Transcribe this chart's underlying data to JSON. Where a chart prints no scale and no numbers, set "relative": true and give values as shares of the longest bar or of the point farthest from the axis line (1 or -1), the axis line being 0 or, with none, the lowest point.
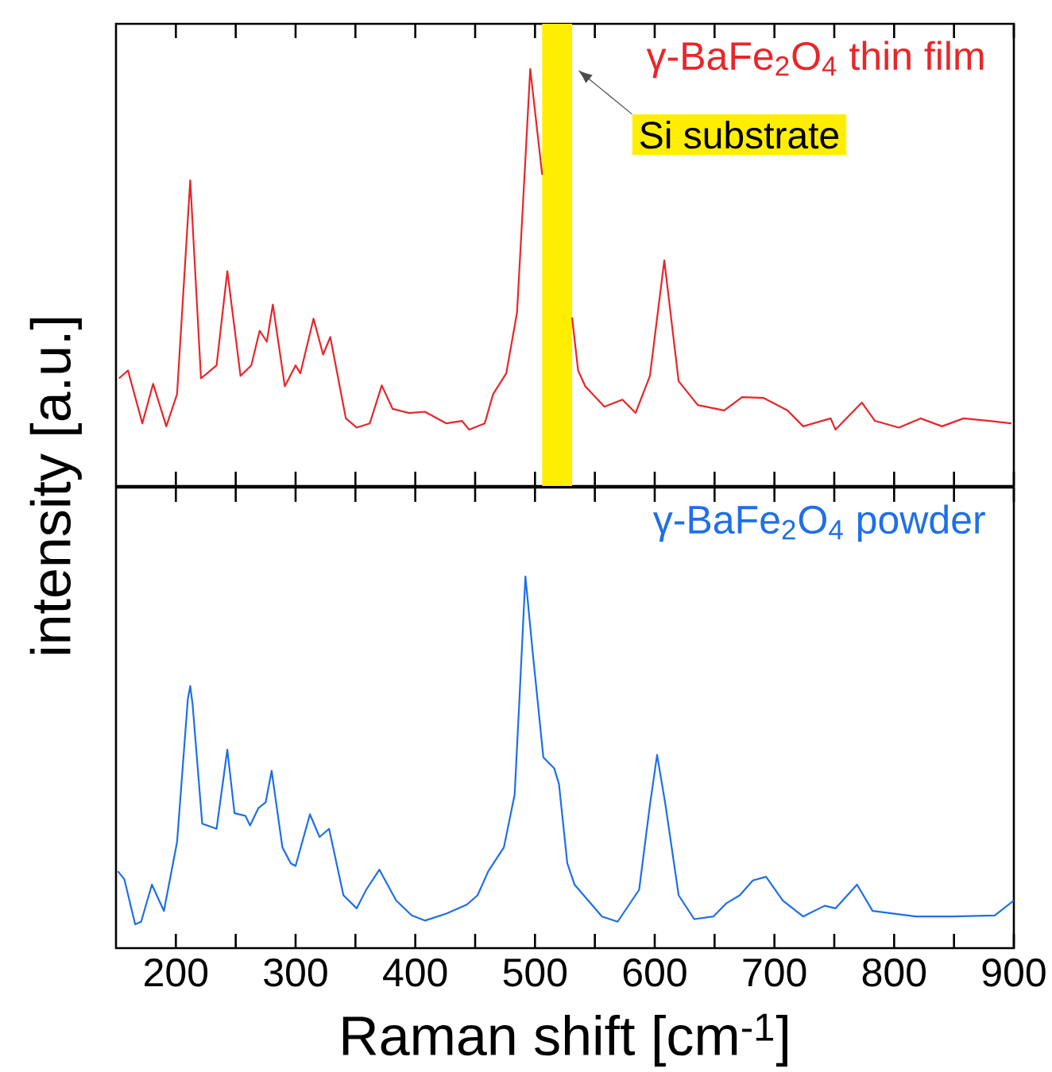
{
  "chart_data": [
    {
      "type": "line",
      "relative": true,
      "ylabel": "intensity [a.u.]",
      "legend": "top right",
      "tick_labels": false,
      "xlim": [
        150,
        900
      ],
      "xticks": [
        200,
        {
          "value": 250,
          "label": null
        },
        300,
        {
          "value": 350,
          "label": null
        },
        400,
        {
          "value": 450,
          "label": null
        },
        500,
        {
          "value": 550,
          "label": null
        },
        600,
        {
          "value": 650,
          "label": null
        },
        700,
        {
          "value": 750,
          "label": null
        },
        800,
        {
          "value": 850,
          "label": null
        },
        900
      ],
      "bands": [
        {
          "axis": "x",
          "from": 506,
          "to": 531,
          "label": "Si substrate",
          "color": "#ffee00"
        }
      ],
      "series": [
        {
          "name": "γ-BaFe$_{2}$O$_{4}$ thin film",
          "color": "#e8262a",
          "x": [
            152.5,
            160,
            172,
            181,
            192,
            201,
            212,
            221,
            234,
            243,
            254,
            263,
            270,
            276,
            281,
            291,
            300,
            304,
            315,
            323,
            329,
            342,
            351,
            362,
            372,
            381,
            395,
            408,
            426,
            439,
            445,
            458,
            465,
            476,
            485,
            492,
            496,
            502,
            506,
            518,
            531,
            536,
            542,
            558,
            573,
            584,
            596,
            608,
            620,
            636,
            658,
            673,
            691,
            711,
            724,
            747,
            751,
            773,
            784,
            804,
            822,
            840,
            858,
            880,
            898
          ],
          "values": [
            0.258,
            0.277,
            0.15,
            0.245,
            0.143,
            0.22,
            0.733,
            0.258,
            0.289,
            0.515,
            0.264,
            0.289,
            0.372,
            0.346,
            0.435,
            0.239,
            0.289,
            0.27,
            0.401,
            0.315,
            0.357,
            0.162,
            0.14,
            0.15,
            0.241,
            0.185,
            0.175,
            0.178,
            0.15,
            0.156,
            0.135,
            0.15,
            0.22,
            0.27,
            0.416,
            0.784,
            1.0,
            0.848,
            0.746,
            null,
            0.404,
            0.277,
            0.239,
            0.19,
            0.207,
            0.175,
            0.264,
            0.541,
            0.251,
            0.194,
            0.181,
            0.213,
            0.211,
            0.181,
            0.143,
            0.162,
            0.135,
            0.2,
            0.156,
            0.14,
            0.162,
            0.143,
            0.162,
            0.156,
            0.15
          ]
        }
      ]
    },
    {
      "type": "line",
      "relative": true,
      "xlabel": "Raman shift [cm$^{-1}$]",
      "legend": "top right",
      "tick_labels": "x",
      "xlim": [
        150,
        900
      ],
      "xticks": [
        200,
        {
          "value": 250,
          "label": null
        },
        300,
        {
          "value": 350,
          "label": null
        },
        400,
        {
          "value": 450,
          "label": null
        },
        500,
        {
          "value": 550,
          "label": null
        },
        600,
        {
          "value": 650,
          "label": null
        },
        700,
        {
          "value": 750,
          "label": null
        },
        800,
        {
          "value": 850,
          "label": null
        },
        900
      ],
      "series": [
        {
          "name": "γ-BaFe$_{2}$O$_{4}$ powder",
          "color": "#1f6fe8",
          "x": [
            151.5,
            157,
            166,
            171,
            180,
            190,
            201,
            210,
            212,
            214,
            222,
            234,
            243,
            249,
            258,
            262,
            269,
            275,
            280,
            289,
            296,
            300,
            312,
            320,
            328,
            340,
            351,
            359,
            370,
            384,
            397,
            408,
            426,
            443,
            452,
            461,
            474,
            483,
            487,
            492,
            498,
            507,
            516,
            520,
            527,
            533,
            556,
            569,
            587,
            596,
            602,
            609,
            620,
            633,
            649,
            660,
            671,
            682,
            693,
            707,
            724,
            742,
            751,
            769,
            782,
            818,
            849,
            884,
            900
          ],
          "values": [
            0.207,
            0.185,
            0.064,
            0.071,
            0.171,
            0.1,
            0.285,
            0.67,
            0.705,
            0.655,
            0.335,
            0.321,
            0.534,
            0.363,
            0.356,
            0.33,
            0.377,
            0.392,
            0.477,
            0.271,
            0.228,
            0.221,
            0.36,
            0.299,
            0.321,
            0.142,
            0.107,
            0.157,
            0.211,
            0.128,
            0.088,
            0.074,
            0.093,
            0.117,
            0.142,
            0.207,
            0.271,
            0.413,
            0.67,
            1.0,
            0.798,
            0.513,
            0.484,
            0.442,
            0.228,
            0.171,
            0.085,
            0.071,
            0.157,
            0.385,
            0.52,
            0.385,
            0.142,
            0.078,
            0.085,
            0.121,
            0.142,
            0.182,
            0.192,
            0.128,
            0.085,
            0.114,
            0.107,
            0.171,
            0.1,
            0.085,
            0.085,
            0.088,
            0.128
          ]
        }
      ]
    }
  ]
}
